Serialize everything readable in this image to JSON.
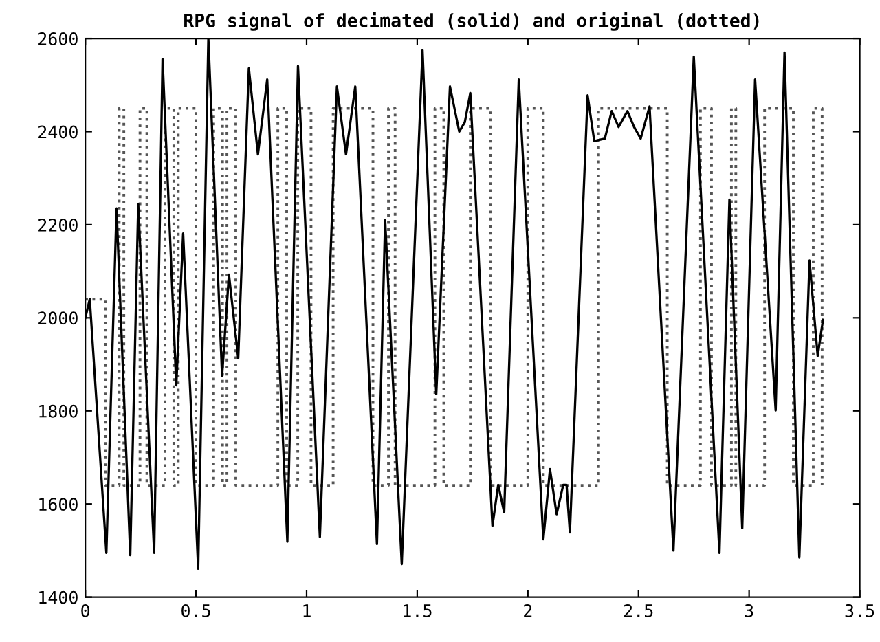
{
  "chart_data": {
    "type": "line",
    "title": "RPG signal of decimated (solid) and original (dotted)",
    "xlim": [
      0,
      3.5
    ],
    "xticks": [
      0,
      0.5,
      1,
      1.5,
      2,
      2.5,
      3,
      3.5
    ],
    "ylim": [
      1400,
      2600
    ],
    "yticks": [
      1400,
      1600,
      1800,
      2000,
      2200,
      2400,
      2600
    ],
    "grid": false,
    "series": [
      {
        "color": "#555555",
        "line_style": "dotted",
        "x": [
          0,
          0.09,
          0.09,
          0.153,
          0.153,
          0.174,
          0.174,
          0.247,
          0.247,
          0.278,
          0.278,
          0.36,
          0.36,
          0.4,
          0.4,
          0.42,
          0.42,
          0.5,
          0.5,
          0.58,
          0.58,
          0.62,
          0.62,
          0.64,
          0.64,
          0.68,
          0.68,
          0.87,
          0.87,
          0.91,
          0.91,
          0.96,
          0.96,
          1.02,
          1.02,
          1.12,
          1.12,
          1.3,
          1.3,
          1.37,
          1.37,
          1.4,
          1.4,
          1.58,
          1.58,
          1.62,
          1.62,
          1.74,
          1.74,
          1.83,
          1.83,
          2.0,
          2.0,
          2.07,
          2.07,
          2.32,
          2.32,
          2.63,
          2.63,
          2.78,
          2.78,
          2.83,
          2.83,
          2.92,
          2.92,
          2.94,
          2.94,
          3.07,
          3.07,
          3.2,
          3.2,
          3.29,
          3.29,
          3.33,
          3.33
        ],
        "values": [
          2040,
          2040,
          1640,
          1640,
          2450,
          2450,
          1640,
          1640,
          2450,
          2450,
          1640,
          1640,
          2450,
          2450,
          1640,
          1640,
          2450,
          2450,
          1640,
          1640,
          2450,
          2450,
          1640,
          1640,
          2450,
          2450,
          1640,
          1640,
          2450,
          2450,
          1640,
          1640,
          2450,
          2450,
          1640,
          1640,
          2450,
          2450,
          1640,
          1640,
          2450,
          2450,
          1640,
          1640,
          2450,
          2450,
          1640,
          1640,
          2450,
          2450,
          1640,
          1640,
          2450,
          2450,
          1640,
          1640,
          2450,
          2450,
          1640,
          1640,
          2450,
          2450,
          1640,
          1640,
          2450,
          2450,
          1640,
          1640,
          2450,
          2450,
          1640,
          1640,
          2450,
          2450,
          1640
        ]
      },
      {
        "color": "#000000",
        "line_style": "solid",
        "x": [
          0,
          0.02,
          0.095,
          0.141,
          0.203,
          0.239,
          0.311,
          0.349,
          0.411,
          0.442,
          0.51,
          0.556,
          0.618,
          0.649,
          0.691,
          0.739,
          0.78,
          0.822,
          0.913,
          0.961,
          1.06,
          1.137,
          1.178,
          1.22,
          1.318,
          1.355,
          1.43,
          1.524,
          1.586,
          1.648,
          1.69,
          1.715,
          1.74,
          1.84,
          1.866,
          1.893,
          1.959,
          2.07,
          2.1,
          2.13,
          2.16,
          2.175,
          2.19,
          2.27,
          2.3,
          2.348,
          2.379,
          2.41,
          2.45,
          2.48,
          2.51,
          2.55,
          2.658,
          2.75,
          2.866,
          2.911,
          2.969,
          3.027,
          3.12,
          3.16,
          3.227,
          3.273,
          3.31,
          3.334
        ],
        "values": [
          2000,
          2040,
          1495,
          2235,
          1490,
          2244,
          1495,
          2556,
          1855,
          2181,
          1461,
          2600,
          1875,
          2093,
          1913,
          2536,
          2351,
          2512,
          1519,
          2541,
          1529,
          2497,
          2351,
          2497,
          1514,
          2210,
          1471,
          2575,
          1836,
          2497,
          2400,
          2420,
          2483,
          1553,
          1641,
          1582,
          2512,
          1524,
          1675,
          1578,
          1641,
          1641,
          1539,
          2478,
          2380,
          2385,
          2444,
          2410,
          2444,
          2410,
          2385,
          2454,
          1500,
          2561,
          1495,
          2254,
          1548,
          2512,
          1801,
          2570,
          1485,
          2123,
          1918,
          1996
        ]
      }
    ]
  }
}
